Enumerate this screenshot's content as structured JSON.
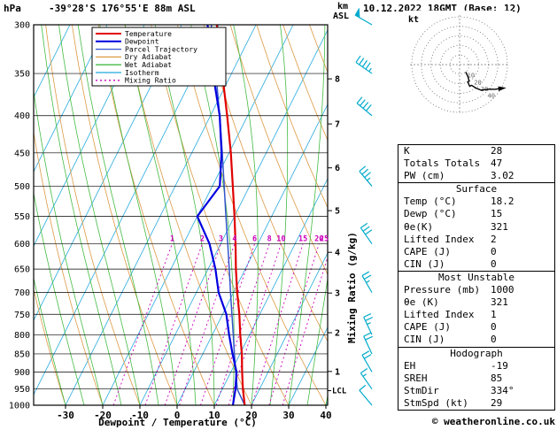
{
  "header": {
    "pressure_unit": "hPa",
    "station": "-39°28'S 176°55'E 88m ASL",
    "km_label": "km",
    "asl_label": "ASL",
    "datetime": "10.12.2022 18GMT (Base: 12)"
  },
  "credit": "© weatheronline.co.uk",
  "chart_data": {
    "type": "skewt_log_p_sounding",
    "x_axis": {
      "label": "Dewpoint / Temperature (°C)",
      "ticks": [
        -30,
        -20,
        -10,
        0,
        10,
        20,
        30,
        40
      ]
    },
    "y_axis": {
      "unit": "hPa",
      "levels": [
        300,
        350,
        400,
        450,
        500,
        550,
        600,
        650,
        700,
        750,
        800,
        850,
        900,
        950,
        1000
      ]
    },
    "km_axis": {
      "ticks": [
        1,
        2,
        3,
        4,
        5,
        6,
        7,
        8
      ]
    },
    "lcl": {
      "label": "LCL",
      "pressure": 955
    },
    "mixing_ratio": {
      "label": "Mixing Ratio (g/kg)",
      "values": [
        1,
        2,
        3,
        4,
        6,
        8,
        10,
        15,
        20,
        25
      ]
    },
    "wind_barb_color": "#00aacc",
    "legend": [
      {
        "label": "Temperature",
        "color": "#e00000",
        "dash": ""
      },
      {
        "label": "Dewpoint",
        "color": "#0000e0",
        "dash": ""
      },
      {
        "label": "Parcel Trajectory",
        "color": "#3355cc",
        "dash": ""
      },
      {
        "label": "Dry Adiabat",
        "color": "#dd9944",
        "dash": ""
      },
      {
        "label": "Wet Adiabat",
        "color": "#44bb44",
        "dash": ""
      },
      {
        "label": "Isotherm",
        "color": "#22aadd",
        "dash": ""
      },
      {
        "label": "Mixing Ratio",
        "color": "#cc00bb",
        "dash": "2,3"
      }
    ],
    "sounding": {
      "pressure": [
        1000,
        950,
        900,
        850,
        800,
        750,
        700,
        650,
        600,
        550,
        500,
        450,
        400,
        350,
        300
      ],
      "temperature": [
        18.2,
        15.5,
        13.0,
        10.5,
        7.5,
        4.5,
        1.0,
        -2.5,
        -6.0,
        -10.0,
        -14.5,
        -19.5,
        -25.5,
        -32.5,
        -40.5
      ],
      "dewpoint": [
        15.0,
        13.5,
        11.5,
        8.0,
        4.5,
        1.0,
        -4.0,
        -8.0,
        -13.0,
        -20.0,
        -18.0,
        -22.0,
        -27.5,
        -35.0,
        -43.0
      ]
    },
    "parcel": {
      "pressure": [
        1000,
        955,
        950,
        900,
        850,
        800,
        750,
        700,
        650,
        600,
        550,
        500,
        450,
        400,
        350,
        300
      ],
      "temperature": [
        18.2,
        14.4,
        14.0,
        11.3,
        8.5,
        5.6,
        2.5,
        -0.8,
        -4.3,
        -8.1,
        -12.3,
        -16.8,
        -21.8,
        -27.5,
        -34.2,
        -42.0
      ]
    },
    "wind_barbs": [
      {
        "pressure": 1000,
        "dir": 320,
        "speed": 10
      },
      {
        "pressure": 950,
        "dir": 325,
        "speed": 15
      },
      {
        "pressure": 900,
        "dir": 330,
        "speed": 20
      },
      {
        "pressure": 850,
        "dir": 335,
        "speed": 20
      },
      {
        "pressure": 800,
        "dir": 335,
        "speed": 25
      },
      {
        "pressure": 700,
        "dir": 330,
        "speed": 25
      },
      {
        "pressure": 600,
        "dir": 325,
        "speed": 30
      },
      {
        "pressure": 500,
        "dir": 320,
        "speed": 35
      },
      {
        "pressure": 400,
        "dir": 310,
        "speed": 40
      },
      {
        "pressure": 350,
        "dir": 305,
        "speed": 45
      },
      {
        "pressure": 300,
        "dir": 300,
        "speed": 50
      }
    ],
    "hodograph": {
      "unit_label": "kt",
      "rings": [
        10,
        20,
        30,
        40,
        50
      ],
      "ring_labels": [
        10,
        20,
        30,
        40
      ],
      "trace_uv": [
        [
          6.4,
          -7.7
        ],
        [
          8.6,
          -12.3
        ],
        [
          10.0,
          -17.3
        ],
        [
          8.5,
          -18.1
        ],
        [
          10.6,
          -22.7
        ],
        [
          12.5,
          -21.7
        ],
        [
          17.2,
          -24.6
        ],
        [
          22.5,
          -26.8
        ],
        [
          30.6,
          -25.7
        ],
        [
          36.9,
          -25.8
        ],
        [
          43.3,
          -25.0
        ]
      ]
    }
  },
  "stats": {
    "top_rows": [
      {
        "label": "K",
        "value": "28"
      },
      {
        "label": "Totals Totals",
        "value": "47"
      },
      {
        "label": "PW (cm)",
        "value": "3.02"
      }
    ],
    "sections": [
      {
        "title": "Surface",
        "rows": [
          {
            "label": "Temp (°C)",
            "value": "18.2"
          },
          {
            "label": "Dewp (°C)",
            "value": "15"
          },
          {
            "label": "θe(K)",
            "value": "321"
          },
          {
            "label": "Lifted Index",
            "value": "2"
          },
          {
            "label": "CAPE (J)",
            "value": "0"
          },
          {
            "label": "CIN (J)",
            "value": "0"
          }
        ]
      },
      {
        "title": "Most Unstable",
        "rows": [
          {
            "label": "Pressure (mb)",
            "value": "1000"
          },
          {
            "label": "θe (K)",
            "value": "321"
          },
          {
            "label": "Lifted Index",
            "value": "1"
          },
          {
            "label": "CAPE (J)",
            "value": "0"
          },
          {
            "label": "CIN (J)",
            "value": "0"
          }
        ]
      },
      {
        "title": "Hodograph",
        "rows": [
          {
            "label": "EH",
            "value": "-19"
          },
          {
            "label": "SREH",
            "value": "85"
          },
          {
            "label": "StmDir",
            "value": "334°"
          },
          {
            "label": "StmSpd (kt)",
            "value": "29"
          }
        ]
      }
    ]
  }
}
